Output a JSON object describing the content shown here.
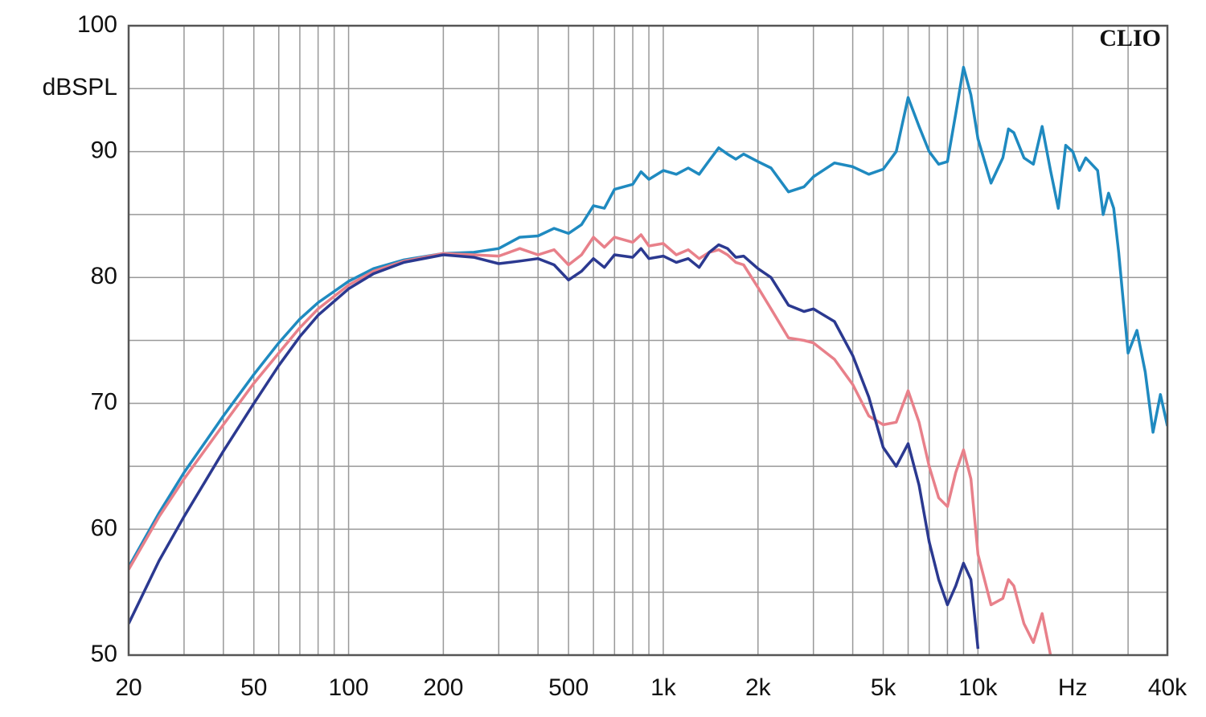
{
  "chart_data": {
    "type": "line",
    "title": "CLIO",
    "y_label": "dBSPL",
    "x_scale": "log",
    "xlim": [
      20,
      40000
    ],
    "ylim": [
      50,
      100
    ],
    "xticks": [
      20,
      50,
      100,
      200,
      500,
      {
        "value": 1000,
        "label": "1k"
      },
      {
        "value": 2000,
        "label": "2k"
      },
      {
        "value": 5000,
        "label": "5k"
      },
      {
        "value": 10000,
        "label": "10k"
      },
      {
        "value": 20000,
        "label": "Hz"
      },
      {
        "value": 40000,
        "label": "40k"
      }
    ],
    "x_minor_ticks": [
      30,
      40,
      60,
      70,
      80,
      90,
      300,
      400,
      600,
      700,
      800,
      900,
      3000,
      4000,
      6000,
      7000,
      8000,
      9000,
      30000
    ],
    "yticks": [
      50,
      60,
      70,
      80,
      90,
      100
    ],
    "y_minor_ticks": [
      55,
      65,
      75,
      85,
      95
    ],
    "grid": true,
    "x": [
      20,
      25,
      30,
      40,
      50,
      60,
      70,
      80,
      100,
      120,
      150,
      200,
      250,
      300,
      350,
      400,
      450,
      500,
      550,
      600,
      650,
      700,
      800,
      850,
      900,
      1000,
      1100,
      1200,
      1300,
      1400,
      1500,
      1600,
      1700,
      1800,
      2000,
      2200,
      2500,
      2800,
      3000,
      3500,
      4000,
      4500,
      5000,
      5500,
      6000,
      6500,
      7000,
      7500,
      8000,
      8500,
      9000,
      9500,
      10000,
      11000,
      12000,
      12500,
      13000,
      14000,
      15000,
      16000,
      17000,
      18000,
      19000,
      20000,
      21000,
      22000,
      24000,
      25000,
      26000,
      27000,
      28000,
      30000,
      32000,
      34000,
      36000,
      38000,
      40000
    ],
    "series": [
      {
        "color": "#1f8ac0",
        "values": [
          57,
          61.3,
          64.5,
          69,
          72.3,
          74.8,
          76.7,
          78,
          79.7,
          80.7,
          81.4,
          81.9,
          82,
          82.3,
          83.2,
          83.3,
          83.9,
          83.5,
          84.2,
          85.7,
          85.5,
          87,
          87.4,
          88.4,
          87.8,
          88.5,
          88.2,
          88.7,
          88.2,
          89.3,
          90.3,
          89.8,
          89.4,
          89.8,
          89.2,
          88.7,
          86.8,
          87.2,
          88,
          89.1,
          88.8,
          88.2,
          88.6,
          90,
          94.3,
          92,
          90,
          89,
          89.2,
          93,
          96.7,
          94.5,
          91,
          87.5,
          89.5,
          91.8,
          91.5,
          89.5,
          89,
          92,
          88.5,
          85.5,
          90.5,
          90,
          88.5,
          89.5,
          88.5,
          85,
          86.7,
          85.5,
          82,
          74,
          75.8,
          72.5,
          67.7,
          70.7,
          68.2
        ]
      },
      {
        "color": "#e8808a",
        "values": [
          56.8,
          61,
          64,
          68.3,
          71.6,
          74,
          76,
          77.5,
          79.4,
          80.5,
          81.3,
          81.9,
          81.8,
          81.7,
          82.3,
          81.8,
          82.2,
          81,
          81.8,
          83.2,
          82.4,
          83.2,
          82.8,
          83.4,
          82.5,
          82.7,
          81.8,
          82.2,
          81.5,
          82,
          82.2,
          81.8,
          81.2,
          81,
          79.2,
          77.5,
          75.2,
          75,
          74.8,
          73.5,
          71.5,
          69,
          68.3,
          68.5,
          71,
          68.5,
          65,
          62.5,
          61.8,
          64.5,
          66.3,
          64,
          58,
          54,
          54.5,
          56,
          55.5,
          52.5,
          51,
          53.3,
          50,
          null,
          null,
          null,
          null,
          null,
          null,
          null,
          null,
          null,
          null,
          null,
          null,
          null,
          null,
          null,
          null
        ]
      },
      {
        "color": "#2b3990",
        "values": [
          52.5,
          57.5,
          61,
          66.2,
          70,
          73,
          75.3,
          77,
          79.1,
          80.3,
          81.2,
          81.8,
          81.6,
          81.1,
          81.3,
          81.5,
          81,
          79.8,
          80.5,
          81.5,
          80.8,
          81.8,
          81.6,
          82.3,
          81.5,
          81.7,
          81.2,
          81.5,
          80.8,
          82,
          82.6,
          82.3,
          81.6,
          81.7,
          80.7,
          80,
          77.8,
          77.3,
          77.5,
          76.5,
          73.8,
          70.5,
          66.5,
          65,
          66.8,
          63.5,
          59,
          56,
          54,
          55.5,
          57.3,
          56,
          50.5,
          null,
          null,
          null,
          null,
          null,
          null,
          null,
          null,
          null,
          null,
          null,
          null,
          null,
          null,
          null,
          null,
          null,
          null,
          null,
          null,
          null,
          null,
          null,
          null
        ]
      }
    ]
  }
}
